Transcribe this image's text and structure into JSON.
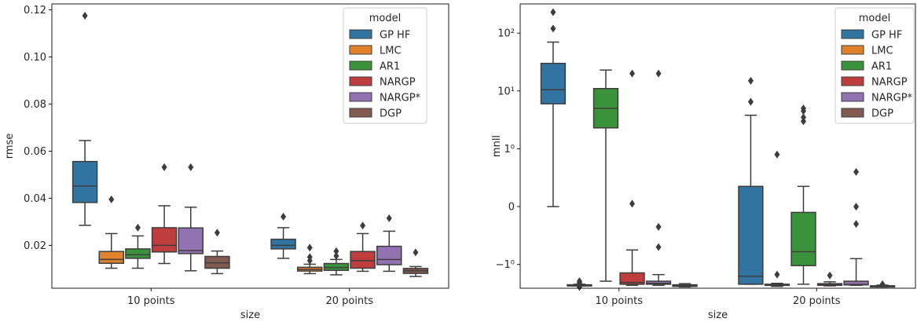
{
  "colors": {
    "GP HF": "#3274a1",
    "LMC": "#e1812c",
    "AR1": "#3a923a",
    "NARGP": "#c03d3e",
    "NARGP*": "#9372b2",
    "DGP": "#845b53",
    "edge": "#3d3d3d"
  },
  "chart_data": [
    {
      "type": "box",
      "xlabel": "size",
      "ylabel": "rmse",
      "categories": [
        "10 points",
        "20 points"
      ],
      "yticks": [
        0.02,
        0.04,
        0.06,
        0.08,
        0.1,
        0.12
      ],
      "ytick_labels": [
        "0.02",
        "0.04",
        "0.06",
        "0.08",
        "0.10",
        "0.12"
      ],
      "ylim": [
        0.0018,
        0.1225
      ],
      "legend": {
        "title": "model",
        "placement": "top-right",
        "entries": [
          "GP HF",
          "LMC",
          "AR1",
          "NARGP",
          "NARGP*",
          "DGP"
        ]
      },
      "series": [
        {
          "name": "GP HF",
          "boxes": [
            {
              "whislo": 0.0285,
              "q1": 0.0382,
              "med": 0.0452,
              "q3": 0.0556,
              "whishi": 0.0645,
              "fliers": [
                0.1175
              ]
            },
            {
              "whislo": 0.0145,
              "q1": 0.0185,
              "med": 0.02,
              "q3": 0.0226,
              "whishi": 0.0275,
              "fliers": [
                0.0322
              ]
            }
          ]
        },
        {
          "name": "LMC",
          "boxes": [
            {
              "whislo": 0.0103,
              "q1": 0.0124,
              "med": 0.014,
              "q3": 0.0174,
              "whishi": 0.025,
              "fliers": [
                0.0395
              ]
            },
            {
              "whislo": 0.008,
              "q1": 0.0091,
              "med": 0.0098,
              "q3": 0.0107,
              "whishi": 0.012,
              "fliers": [
                0.0135,
                0.015,
                0.019
              ]
            }
          ]
        },
        {
          "name": "AR1",
          "boxes": [
            {
              "whislo": 0.0103,
              "q1": 0.0145,
              "med": 0.016,
              "q3": 0.0185,
              "whishi": 0.024,
              "fliers": [
                0.0275
              ]
            },
            {
              "whislo": 0.0075,
              "q1": 0.0094,
              "med": 0.0106,
              "q3": 0.0123,
              "whishi": 0.014,
              "fliers": [
                0.0155,
                0.0175
              ]
            }
          ]
        },
        {
          "name": "NARGP",
          "boxes": [
            {
              "whislo": 0.0123,
              "q1": 0.0172,
              "med": 0.02,
              "q3": 0.0275,
              "whishi": 0.0368,
              "fliers": [
                0.0532
              ]
            },
            {
              "whislo": 0.009,
              "q1": 0.0103,
              "med": 0.0135,
              "q3": 0.0174,
              "whishi": 0.025,
              "fliers": [
                0.0284
              ]
            }
          ]
        },
        {
          "name": "NARGP*",
          "boxes": [
            {
              "whislo": 0.0092,
              "q1": 0.0165,
              "med": 0.0178,
              "q3": 0.0274,
              "whishi": 0.0362,
              "fliers": [
                0.0532
              ]
            },
            {
              "whislo": 0.009,
              "q1": 0.0118,
              "med": 0.014,
              "q3": 0.0196,
              "whishi": 0.026,
              "fliers": [
                0.0315
              ]
            }
          ]
        },
        {
          "name": "DGP",
          "boxes": [
            {
              "whislo": 0.008,
              "q1": 0.0103,
              "med": 0.0126,
              "q3": 0.0153,
              "whishi": 0.0176,
              "fliers": [
                0.0254
              ]
            },
            {
              "whislo": 0.0068,
              "q1": 0.0081,
              "med": 0.0092,
              "q3": 0.0102,
              "whishi": 0.011,
              "fliers": [
                0.017
              ]
            }
          ]
        }
      ]
    },
    {
      "type": "box",
      "xlabel": "size",
      "ylabel": "mnll",
      "categories": [
        "10 points",
        "20 points"
      ],
      "scale": "symlog",
      "yticks": [
        -1,
        0,
        1,
        10,
        100
      ],
      "ytick_labels": [
        "−1⁰",
        "0",
        "1⁰",
        "10¹",
        "10²"
      ],
      "ylim": [
        -2.58,
        320
      ],
      "legend": {
        "title": "model",
        "placement": "top-right",
        "entries": [
          "GP HF",
          "LMC",
          "AR1",
          "NARGP",
          "NARGP*",
          "DGP"
        ]
      },
      "series": [
        {
          "name": "GP HF",
          "boxes": [
            {
              "whislo": 0.0,
              "q1": 6.0,
              "med": 10.5,
              "q3": 30.0,
              "whishi": 70.0,
              "fliers": [
                120,
                230
              ]
            },
            {
              "whislo": -2.2,
              "q1": -2.2,
              "med": -1.6,
              "q3": 0.35,
              "whishi": 3.8,
              "fliers": [
                6.5,
                15
              ]
            }
          ]
        },
        {
          "name": "LMC",
          "boxes": [
            {
              "whislo": -2.35,
              "q1": -2.31,
              "med": -2.28,
              "q3": -2.25,
              "whishi": -2.2,
              "fliers": [
                -2.45,
                -2.4,
                -2.15,
                -2.05,
                -1.95
              ]
            },
            {
              "whislo": -2.4,
              "q1": -2.3,
              "med": -2.25,
              "q3": -2.2,
              "whishi": -2.12,
              "fliers": [
                -1.5,
                0.9
              ]
            }
          ]
        },
        {
          "name": "AR1",
          "boxes": [
            {
              "whislo": -1.95,
              "q1": 2.3,
              "med": 5.0,
              "q3": 11.0,
              "whishi": 23.0,
              "fliers": []
            },
            {
              "whislo": -2.2,
              "q1": -1.05,
              "med": -0.78,
              "q3": -0.1,
              "whishi": 0.35,
              "fliers": [
                3.0,
                3.5,
                4.5,
                5.0
              ]
            }
          ]
        },
        {
          "name": "NARGP",
          "boxes": [
            {
              "whislo": -2.3,
              "q1": -2.2,
              "med": -2.05,
              "q3": -1.4,
              "whishi": -0.75,
              "fliers": [
                0.05,
                20
              ]
            },
            {
              "whislo": -2.35,
              "q1": -2.3,
              "med": -2.25,
              "q3": -2.15,
              "whishi": -2.0,
              "fliers": [
                -1.55
              ]
            }
          ]
        },
        {
          "name": "NARGP*",
          "boxes": [
            {
              "whislo": -2.3,
              "q1": -2.2,
              "med": -2.12,
              "q3": -1.95,
              "whishi": -1.5,
              "fliers": [
                -0.7,
                -0.35,
                20
              ]
            },
            {
              "whislo": -2.3,
              "q1": -2.26,
              "med": -2.22,
              "q3": -1.95,
              "whishi": -0.9,
              "fliers": [
                -0.3,
                0.0,
                0.6
              ]
            }
          ]
        },
        {
          "name": "DGP",
          "boxes": [
            {
              "whislo": -2.45,
              "q1": -2.4,
              "med": -2.35,
              "q3": -2.25,
              "whishi": -2.15,
              "fliers": []
            },
            {
              "whislo": -2.45,
              "q1": -2.42,
              "med": -2.38,
              "q3": -2.34,
              "whishi": -2.28,
              "fliers": [
                -2.2
              ]
            }
          ]
        }
      ]
    }
  ]
}
